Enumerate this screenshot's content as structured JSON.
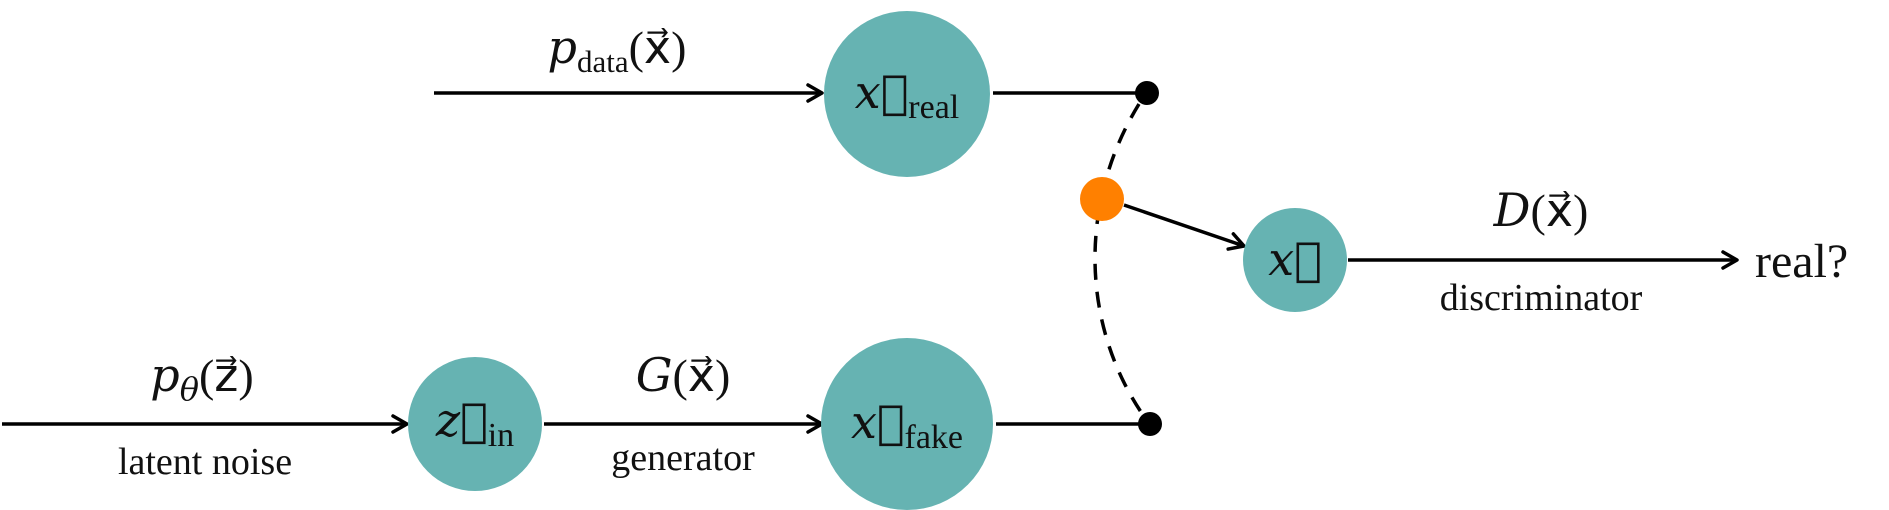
{
  "colors": {
    "node_fill": "#66b3b2",
    "switch_fill": "#ff8000",
    "terminal_fill": "#000000",
    "line": "#000000"
  },
  "nodes": {
    "x_real": {
      "base": "x⃗",
      "sub": "real"
    },
    "z_in": {
      "base": "z⃗",
      "sub": "in"
    },
    "x_fake": {
      "base": "x⃗",
      "sub": "fake"
    },
    "x": {
      "base": "x⃗"
    }
  },
  "edges": {
    "p_data": {
      "fn": "p",
      "sub": "data",
      "arg": "(x⃗)"
    },
    "p_theta": {
      "fn": "p",
      "sub": "θ",
      "arg": "(z⃗)",
      "caption": "latent noise"
    },
    "generator": {
      "fn": "G",
      "arg": "(x⃗)",
      "caption": "generator"
    },
    "discriminator": {
      "fn": "D",
      "arg": "(x⃗)",
      "caption": "discriminator"
    }
  },
  "output": {
    "label": "real?"
  }
}
